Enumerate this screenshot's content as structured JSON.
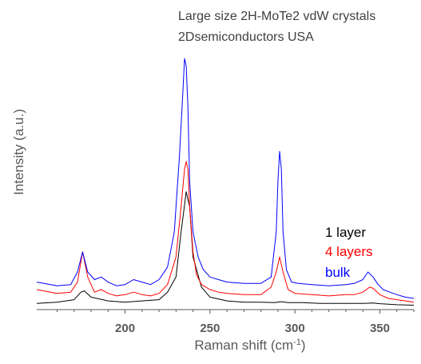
{
  "chart_data": {
    "type": "line",
    "title_lines": [
      "Large size 2H-MoTe2 vdW crystals",
      "2Dsemiconductors USA"
    ],
    "xlabel": "Raman shift (cm",
    "xlabel_sup": "-1",
    "xlabel_tail": ")",
    "ylabel": "Intensity (a.u.)",
    "xlim": [
      148,
      370
    ],
    "ylim": [
      0,
      1
    ],
    "xticks": [
      200,
      250,
      300,
      350
    ],
    "xtick_labels": [
      "200",
      "250",
      "300",
      "350"
    ],
    "grid": false,
    "legend_position": "right-middle",
    "y_ticks_shown": false,
    "series": [
      {
        "name": "1 layer",
        "color": "#000000",
        "x": [
          148,
          160,
          170,
          174,
          176,
          180,
          190,
          200,
          210,
          220,
          225,
          230,
          233,
          236,
          238,
          240,
          245,
          250,
          260,
          270,
          280,
          288,
          292,
          296,
          305,
          315,
          330,
          340,
          346,
          350,
          360,
          370
        ],
        "y": [
          0.015,
          0.02,
          0.03,
          0.06,
          0.065,
          0.04,
          0.025,
          0.02,
          0.025,
          0.03,
          0.06,
          0.12,
          0.3,
          0.46,
          0.4,
          0.2,
          0.08,
          0.04,
          0.025,
          0.02,
          0.02,
          0.018,
          0.022,
          0.018,
          0.018,
          0.015,
          0.015,
          0.015,
          0.017,
          0.014,
          0.01,
          0.008
        ]
      },
      {
        "name": "4 layers",
        "color": "#ff0000",
        "x": [
          148,
          160,
          168,
          172,
          175,
          178,
          182,
          186,
          190,
          195,
          200,
          205,
          210,
          215,
          220,
          225,
          230,
          233,
          235,
          236,
          237,
          238,
          240,
          242,
          245,
          250,
          255,
          260,
          270,
          280,
          286,
          289,
          291,
          293,
          296,
          300,
          310,
          320,
          330,
          335,
          340,
          344,
          346,
          350,
          355,
          360,
          365,
          370
        ],
        "y": [
          0.07,
          0.055,
          0.06,
          0.1,
          0.22,
          0.12,
          0.06,
          0.07,
          0.055,
          0.045,
          0.05,
          0.06,
          0.05,
          0.045,
          0.055,
          0.09,
          0.2,
          0.4,
          0.55,
          0.58,
          0.55,
          0.4,
          0.22,
          0.13,
          0.09,
          0.07,
          0.06,
          0.055,
          0.05,
          0.05,
          0.08,
          0.14,
          0.2,
          0.14,
          0.07,
          0.055,
          0.05,
          0.045,
          0.05,
          0.05,
          0.06,
          0.08,
          0.075,
          0.05,
          0.035,
          0.03,
          0.025,
          0.02
        ]
      },
      {
        "name": "bulk",
        "color": "#0000ff",
        "x": [
          148,
          160,
          168,
          172,
          175,
          178,
          182,
          186,
          190,
          195,
          200,
          205,
          210,
          215,
          220,
          225,
          229,
          232,
          234,
          235,
          236,
          237,
          238,
          240,
          243,
          246,
          250,
          255,
          260,
          270,
          280,
          286,
          289,
          290,
          291,
          292,
          293,
          295,
          298,
          302,
          310,
          320,
          330,
          335,
          340,
          343,
          346,
          349,
          352,
          356,
          360,
          365,
          370
        ],
        "y": [
          0.1,
          0.085,
          0.09,
          0.14,
          0.22,
          0.14,
          0.11,
          0.12,
          0.1,
          0.085,
          0.09,
          0.11,
          0.1,
          0.09,
          0.11,
          0.16,
          0.3,
          0.6,
          0.85,
          0.99,
          0.96,
          0.8,
          0.5,
          0.3,
          0.2,
          0.15,
          0.12,
          0.11,
          0.1,
          0.095,
          0.095,
          0.12,
          0.3,
          0.5,
          0.62,
          0.55,
          0.3,
          0.15,
          0.1,
          0.095,
          0.09,
          0.085,
          0.09,
          0.095,
          0.11,
          0.14,
          0.12,
          0.09,
          0.07,
          0.06,
          0.05,
          0.04,
          0.035
        ]
      }
    ]
  }
}
